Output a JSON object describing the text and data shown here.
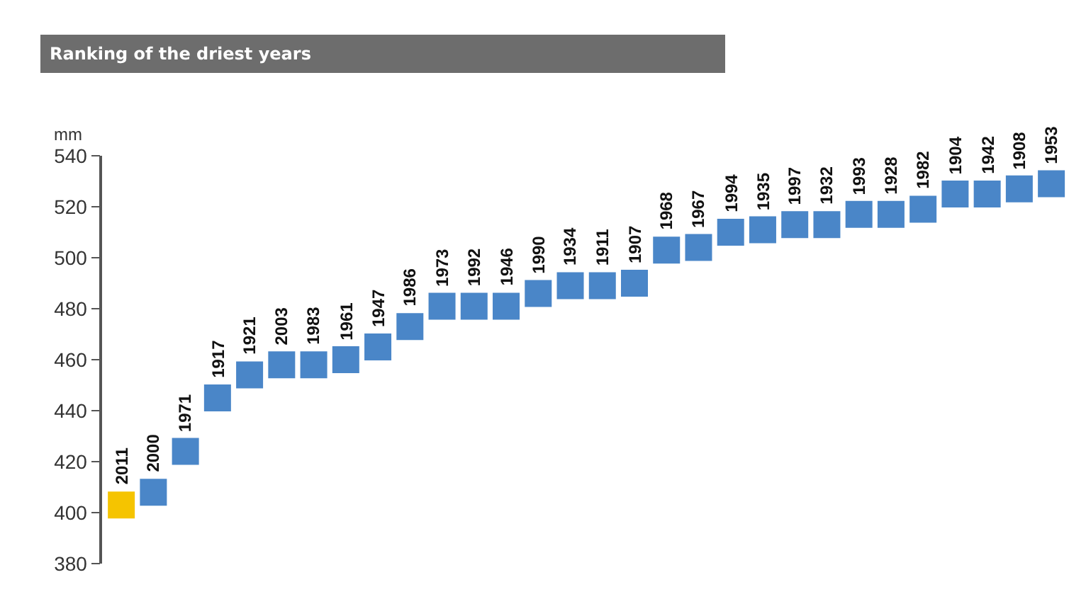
{
  "chart_data": {
    "type": "scatter",
    "title": "Ranking of the driest years",
    "ylabel": "mm",
    "categories": [
      "2011",
      "2000",
      "1971",
      "1917",
      "1921",
      "2003",
      "1983",
      "1961",
      "1947",
      "1986",
      "1973",
      "1992",
      "1946",
      "1990",
      "1934",
      "1911",
      "1907",
      "1968",
      "1967",
      "1994",
      "1935",
      "1997",
      "1932",
      "1993",
      "1928",
      "1982",
      "1904",
      "1942",
      "1908",
      "1953"
    ],
    "values": [
      403,
      408,
      424,
      445,
      454,
      458,
      458,
      460,
      465,
      473,
      481,
      481,
      481,
      486,
      489,
      489,
      490,
      503,
      504,
      510,
      511,
      513,
      513,
      517,
      517,
      519,
      525,
      525,
      527,
      529
    ],
    "colors": [
      "#f5c400",
      "#4a86c8",
      "#4a86c8",
      "#4a86c8",
      "#4a86c8",
      "#4a86c8",
      "#4a86c8",
      "#4a86c8",
      "#4a86c8",
      "#4a86c8",
      "#4a86c8",
      "#4a86c8",
      "#4a86c8",
      "#4a86c8",
      "#4a86c8",
      "#4a86c8",
      "#4a86c8",
      "#4a86c8",
      "#4a86c8",
      "#4a86c8",
      "#4a86c8",
      "#4a86c8",
      "#4a86c8",
      "#4a86c8",
      "#4a86c8",
      "#4a86c8",
      "#4a86c8",
      "#4a86c8",
      "#4a86c8",
      "#4a86c8"
    ],
    "marker": "square",
    "ylim": [
      380,
      540
    ],
    "yticks": [
      380,
      400,
      420,
      440,
      460,
      480,
      500,
      520,
      540
    ],
    "grid": false,
    "tick_labels": "y"
  }
}
